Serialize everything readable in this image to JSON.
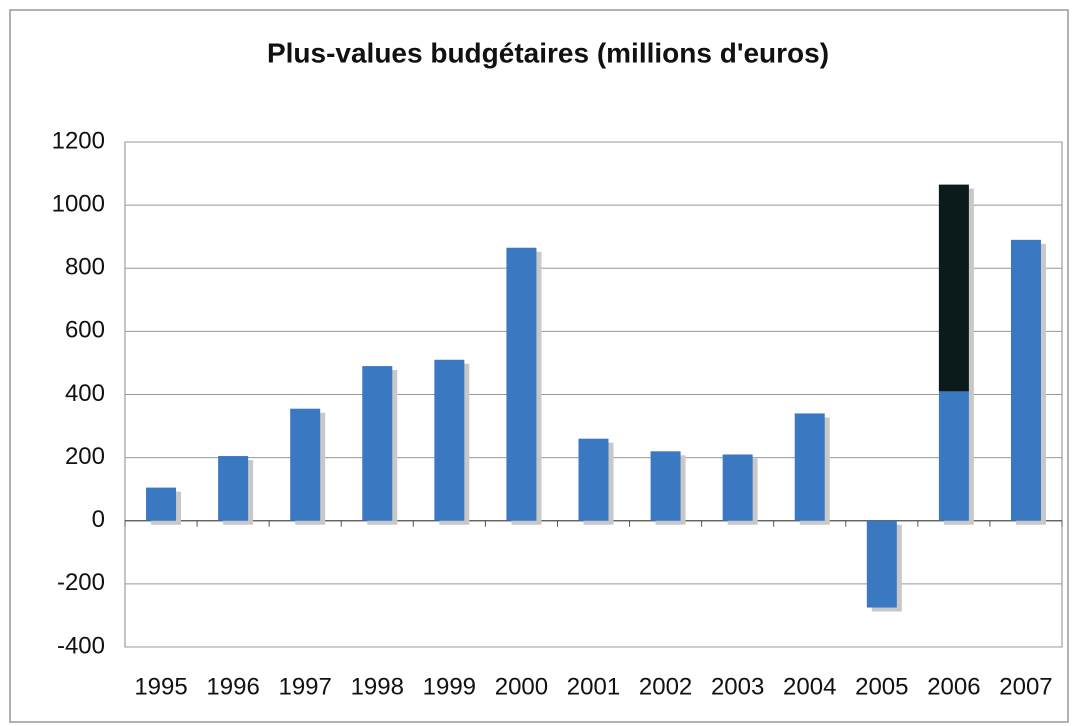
{
  "chart_data": {
    "type": "bar",
    "title": "Plus-values budgétaires (millions d'euros)",
    "categories": [
      "1995",
      "1996",
      "1997",
      "1998",
      "1999",
      "2000",
      "2001",
      "2002",
      "2003",
      "2004",
      "2005",
      "2006",
      "2007"
    ],
    "series": [
      {
        "color": "#3a78c2",
        "values": [
          105,
          205,
          355,
          490,
          510,
          865,
          260,
          220,
          210,
          340,
          -275,
          410,
          890
        ]
      },
      {
        "color": "#0b1a1a",
        "values": [
          null,
          null,
          null,
          null,
          null,
          null,
          null,
          null,
          null,
          null,
          null,
          655,
          null
        ]
      }
    ],
    "stacked": true,
    "ylim": [
      -400,
      1200
    ],
    "yticks": [
      -400,
      -200,
      0,
      200,
      400,
      600,
      800,
      1000,
      1200
    ],
    "grid": true
  }
}
